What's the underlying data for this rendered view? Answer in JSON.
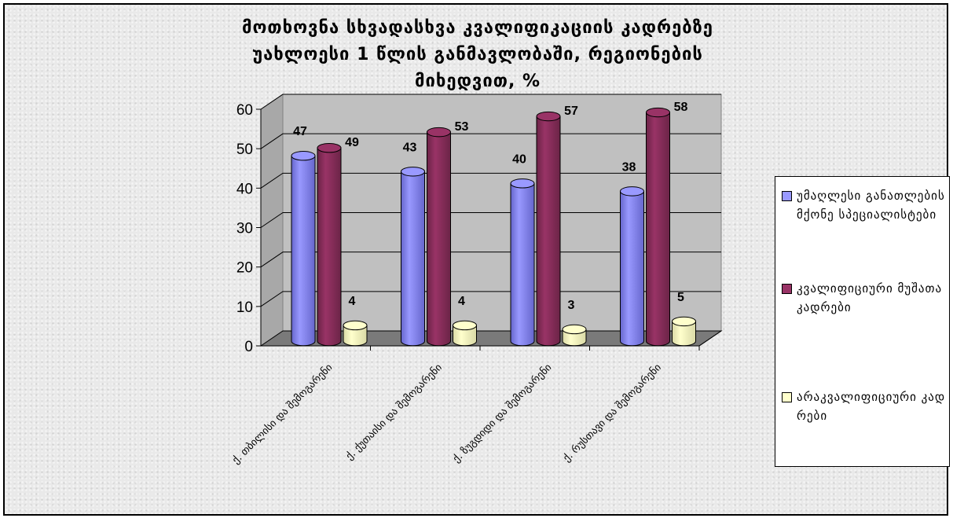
{
  "chart_data": {
    "type": "bar",
    "title": [
      "მოთხოვნა სხვადასხვა კვალიფიკაციის კადრებზე",
      "უახლოესი 1 წლის განმავლობაში, რეგიონების",
      "მიხედვით, %"
    ],
    "categories": [
      "ქ. თბილისი და შემოგარენი",
      "ქ. ქუთაისი და შემოგარენი",
      "ქ. ზუგდიდი და შემოგარენი",
      "ქ. რუსთავი და შემოგარენი"
    ],
    "series": [
      {
        "name": "უმაღლესი განათლების მქონე სპეციალისტები",
        "values": [
          47,
          43,
          40,
          38
        ],
        "color": "#9999ff",
        "dark": "#6666cc"
      },
      {
        "name": "კვალიფიციური მუშათა კადრები",
        "values": [
          49,
          53,
          57,
          58
        ],
        "color": "#993366",
        "dark": "#6b2447"
      },
      {
        "name": "არაკვალიფიციური კადრები",
        "values": [
          4,
          4,
          3,
          5
        ],
        "color": "#ffffcc",
        "dark": "#d9d9a6"
      }
    ],
    "yticks": [
      0,
      10,
      20,
      30,
      40,
      50,
      60
    ],
    "ylim": [
      0,
      60
    ],
    "xlabel": "",
    "ylabel": "",
    "grid": true,
    "legend_position": "right"
  }
}
